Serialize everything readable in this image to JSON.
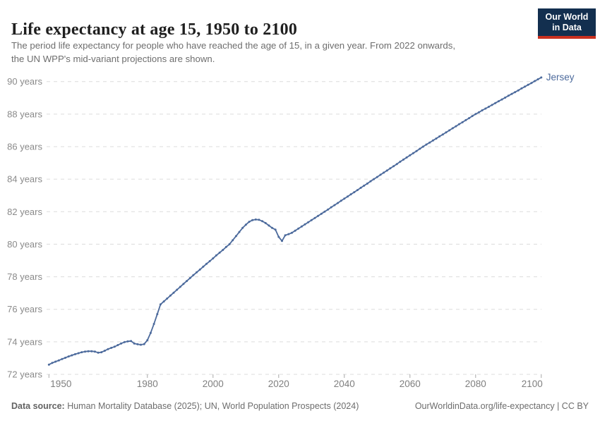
{
  "header": {
    "title": "Life expectancy at age 15, 1950 to 2100",
    "subtitle_line1": "The period life expectancy for people who have reached the age of 15, in a given year. From 2022 onwards,",
    "subtitle_line2": "the UN WPP's mid-variant projections are shown.",
    "logo_line1": "Our World",
    "logo_line2": "in Data"
  },
  "colors": {
    "line": "#4C6A9C",
    "entity_label": "#4C6A9C",
    "grid": "#DCDCDC",
    "tick": "#A8A8A8",
    "y_axis_text": "#8A8A8A",
    "x_axis_text": "#7F7F7F",
    "logo_bg": "#132F4F",
    "logo_accent": "#C9301F"
  },
  "chart_data": {
    "type": "line",
    "title": "Life expectancy at age 15, 1950 to 2100",
    "entity": "Jersey",
    "xlabel": "",
    "ylabel": "",
    "xlim": [
      1950,
      2100
    ],
    "ylim": [
      72,
      90.6
    ],
    "grid": "horizontal-dashed",
    "legend_position": "end-of-line-label",
    "x_ticks": [
      1950,
      1980,
      2000,
      2020,
      2040,
      2060,
      2080,
      2100
    ],
    "y_ticks": [
      72,
      74,
      76,
      78,
      80,
      82,
      84,
      86,
      88,
      90
    ],
    "y_tick_label_suffix": " years",
    "x_start": 1950,
    "x_end": 2100,
    "x_step": 1,
    "series": [
      {
        "name": "Jersey",
        "color": "#4C6A9C",
        "values": [
          72.6,
          72.7,
          72.78,
          72.86,
          72.94,
          73.02,
          73.1,
          73.17,
          73.24,
          73.3,
          73.36,
          73.4,
          73.42,
          73.42,
          73.4,
          73.33,
          73.36,
          73.45,
          73.55,
          73.63,
          73.7,
          73.8,
          73.9,
          73.98,
          74.03,
          74.05,
          73.9,
          73.85,
          73.82,
          73.86,
          74.1,
          74.55,
          75.1,
          75.7,
          76.3,
          76.48,
          76.66,
          76.84,
          77.02,
          77.2,
          77.38,
          77.56,
          77.74,
          77.92,
          78.1,
          78.27,
          78.44,
          78.62,
          78.79,
          78.96,
          79.13,
          79.31,
          79.48,
          79.65,
          79.83,
          80.0,
          80.25,
          80.5,
          80.75,
          81.0,
          81.2,
          81.38,
          81.48,
          81.52,
          81.5,
          81.42,
          81.3,
          81.15,
          81.0,
          80.9,
          80.45,
          80.2,
          80.55,
          80.62,
          80.7,
          80.83,
          80.96,
          81.09,
          81.22,
          81.35,
          81.48,
          81.61,
          81.74,
          81.87,
          82.0,
          82.13,
          82.27,
          82.4,
          82.53,
          82.67,
          82.8,
          82.93,
          83.07,
          83.2,
          83.33,
          83.47,
          83.6,
          83.73,
          83.87,
          84.0,
          84.13,
          84.27,
          84.4,
          84.53,
          84.67,
          84.8,
          84.93,
          85.07,
          85.2,
          85.33,
          85.47,
          85.6,
          85.73,
          85.87,
          86.0,
          86.13,
          86.25,
          86.38,
          86.5,
          86.63,
          86.75,
          86.88,
          87.0,
          87.13,
          87.25,
          87.38,
          87.5,
          87.63,
          87.75,
          87.88,
          88.0,
          88.11,
          88.23,
          88.34,
          88.45,
          88.56,
          88.68,
          88.79,
          88.9,
          89.01,
          89.13,
          89.24,
          89.35,
          89.46,
          89.58,
          89.69,
          89.8,
          89.91,
          90.03,
          90.14,
          90.25
        ]
      }
    ]
  },
  "footer": {
    "source_label": "Data source:",
    "source_text": " Human Mortality Database (2025); UN, World Population Prospects (2024)",
    "attribution": "OurWorldinData.org/life-expectancy | CC BY"
  }
}
